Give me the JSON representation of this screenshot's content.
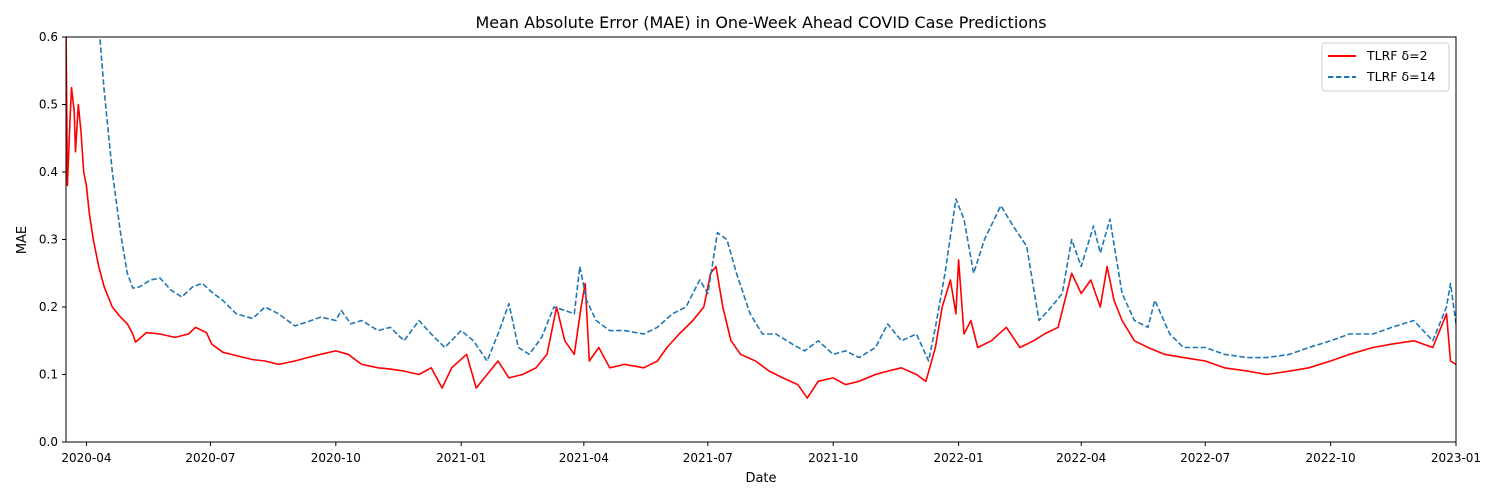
{
  "chart_data": {
    "type": "line",
    "title": "Mean Absolute Error (MAE) in One-Week Ahead COVID Case Predictions",
    "xlabel": "Date",
    "ylabel": "MAE",
    "xlim": [
      "2020-03-17",
      "2023-01-01"
    ],
    "ylim": [
      0,
      0.6
    ],
    "grid": false,
    "legend_position": "top-right",
    "x_ticks": [
      "2020-04",
      "2020-07",
      "2020-10",
      "2021-01",
      "2021-04",
      "2021-07",
      "2021-10",
      "2022-01",
      "2022-04",
      "2022-07",
      "2022-10",
      "2023-01"
    ],
    "y_ticks": [
      "0.0",
      "0.1",
      "0.2",
      "0.3",
      "0.4",
      "0.5",
      "0.6"
    ],
    "series": [
      {
        "name": "TLRF δ=2",
        "color": "#ff0000",
        "dash": "solid",
        "points": [
          [
            "2020-03-17",
            0.62
          ],
          [
            "2020-03-18",
            0.38
          ],
          [
            "2020-03-20",
            0.48
          ],
          [
            "2020-03-21",
            0.525
          ],
          [
            "2020-03-23",
            0.49
          ],
          [
            "2020-03-24",
            0.43
          ],
          [
            "2020-03-26",
            0.5
          ],
          [
            "2020-03-28",
            0.46
          ],
          [
            "2020-03-30",
            0.4
          ],
          [
            "2020-04-01",
            0.38
          ],
          [
            "2020-04-03",
            0.34
          ],
          [
            "2020-04-06",
            0.3
          ],
          [
            "2020-04-10",
            0.26
          ],
          [
            "2020-04-14",
            0.23
          ],
          [
            "2020-04-20",
            0.2
          ],
          [
            "2020-04-26",
            0.185
          ],
          [
            "2020-05-01",
            0.175
          ],
          [
            "2020-05-05",
            0.16
          ],
          [
            "2020-05-07",
            0.148
          ],
          [
            "2020-05-15",
            0.162
          ],
          [
            "2020-05-25",
            0.16
          ],
          [
            "2020-06-05",
            0.155
          ],
          [
            "2020-06-15",
            0.16
          ],
          [
            "2020-06-20",
            0.17
          ],
          [
            "2020-06-28",
            0.162
          ],
          [
            "2020-07-02",
            0.145
          ],
          [
            "2020-07-10",
            0.133
          ],
          [
            "2020-07-20",
            0.128
          ],
          [
            "2020-08-01",
            0.122
          ],
          [
            "2020-08-10",
            0.12
          ],
          [
            "2020-08-20",
            0.115
          ],
          [
            "2020-09-01",
            0.12
          ],
          [
            "2020-09-10",
            0.125
          ],
          [
            "2020-09-20",
            0.13
          ],
          [
            "2020-10-01",
            0.135
          ],
          [
            "2020-10-10",
            0.13
          ],
          [
            "2020-10-20",
            0.115
          ],
          [
            "2020-11-01",
            0.11
          ],
          [
            "2020-11-10",
            0.108
          ],
          [
            "2020-11-20",
            0.105
          ],
          [
            "2020-12-01",
            0.1
          ],
          [
            "2020-12-10",
            0.11
          ],
          [
            "2020-12-18",
            0.08
          ],
          [
            "2020-12-25",
            0.11
          ],
          [
            "2021-01-05",
            0.13
          ],
          [
            "2021-01-12",
            0.08
          ],
          [
            "2021-01-20",
            0.1
          ],
          [
            "2021-01-28",
            0.12
          ],
          [
            "2021-02-05",
            0.095
          ],
          [
            "2021-02-15",
            0.1
          ],
          [
            "2021-02-25",
            0.11
          ],
          [
            "2021-03-05",
            0.13
          ],
          [
            "2021-03-12",
            0.2
          ],
          [
            "2021-03-18",
            0.15
          ],
          [
            "2021-03-25",
            0.13
          ],
          [
            "2021-03-30",
            0.2
          ],
          [
            "2021-04-02",
            0.235
          ],
          [
            "2021-04-05",
            0.12
          ],
          [
            "2021-04-12",
            0.14
          ],
          [
            "2021-04-20",
            0.11
          ],
          [
            "2021-05-01",
            0.115
          ],
          [
            "2021-05-15",
            0.11
          ],
          [
            "2021-05-25",
            0.12
          ],
          [
            "2021-06-01",
            0.14
          ],
          [
            "2021-06-10",
            0.16
          ],
          [
            "2021-06-20",
            0.18
          ],
          [
            "2021-06-28",
            0.2
          ],
          [
            "2021-07-03",
            0.25
          ],
          [
            "2021-07-07",
            0.26
          ],
          [
            "2021-07-12",
            0.2
          ],
          [
            "2021-07-18",
            0.15
          ],
          [
            "2021-07-25",
            0.13
          ],
          [
            "2021-08-05",
            0.12
          ],
          [
            "2021-08-15",
            0.105
          ],
          [
            "2021-08-25",
            0.095
          ],
          [
            "2021-09-05",
            0.085
          ],
          [
            "2021-09-12",
            0.065
          ],
          [
            "2021-09-20",
            0.09
          ],
          [
            "2021-10-01",
            0.095
          ],
          [
            "2021-10-10",
            0.085
          ],
          [
            "2021-10-20",
            0.09
          ],
          [
            "2021-11-01",
            0.1
          ],
          [
            "2021-11-10",
            0.105
          ],
          [
            "2021-11-20",
            0.11
          ],
          [
            "2021-12-01",
            0.1
          ],
          [
            "2021-12-08",
            0.09
          ],
          [
            "2021-12-15",
            0.14
          ],
          [
            "2021-12-20",
            0.2
          ],
          [
            "2021-12-26",
            0.24
          ],
          [
            "2021-12-30",
            0.19
          ],
          [
            "2022-01-01",
            0.27
          ],
          [
            "2022-01-05",
            0.16
          ],
          [
            "2022-01-10",
            0.18
          ],
          [
            "2022-01-15",
            0.14
          ],
          [
            "2022-01-25",
            0.15
          ],
          [
            "2022-02-05",
            0.17
          ],
          [
            "2022-02-15",
            0.14
          ],
          [
            "2022-02-25",
            0.15
          ],
          [
            "2022-03-05",
            0.16
          ],
          [
            "2022-03-15",
            0.17
          ],
          [
            "2022-03-25",
            0.25
          ],
          [
            "2022-04-01",
            0.22
          ],
          [
            "2022-04-08",
            0.24
          ],
          [
            "2022-04-15",
            0.2
          ],
          [
            "2022-04-20",
            0.26
          ],
          [
            "2022-04-25",
            0.21
          ],
          [
            "2022-05-01",
            0.18
          ],
          [
            "2022-05-10",
            0.15
          ],
          [
            "2022-05-20",
            0.14
          ],
          [
            "2022-06-01",
            0.13
          ],
          [
            "2022-06-15",
            0.125
          ],
          [
            "2022-07-01",
            0.12
          ],
          [
            "2022-07-15",
            0.11
          ],
          [
            "2022-08-01",
            0.105
          ],
          [
            "2022-08-15",
            0.1
          ],
          [
            "2022-09-01",
            0.105
          ],
          [
            "2022-09-15",
            0.11
          ],
          [
            "2022-10-01",
            0.12
          ],
          [
            "2022-10-15",
            0.13
          ],
          [
            "2022-11-01",
            0.14
          ],
          [
            "2022-11-15",
            0.145
          ],
          [
            "2022-12-01",
            0.15
          ],
          [
            "2022-12-15",
            0.14
          ],
          [
            "2022-12-25",
            0.19
          ],
          [
            "2022-12-28",
            0.12
          ],
          [
            "2023-01-01",
            0.115
          ]
        ]
      },
      {
        "name": "TLRF δ=14",
        "color": "#1f77b4",
        "dash": "dashed",
        "points": [
          [
            "2020-04-10",
            0.62
          ],
          [
            "2020-04-14",
            0.52
          ],
          [
            "2020-04-20",
            0.4
          ],
          [
            "2020-04-26",
            0.31
          ],
          [
            "2020-05-01",
            0.25
          ],
          [
            "2020-05-05",
            0.228
          ],
          [
            "2020-05-10",
            0.23
          ],
          [
            "2020-05-18",
            0.24
          ],
          [
            "2020-05-25",
            0.243
          ],
          [
            "2020-06-02",
            0.225
          ],
          [
            "2020-06-10",
            0.215
          ],
          [
            "2020-06-18",
            0.23
          ],
          [
            "2020-06-25",
            0.235
          ],
          [
            "2020-07-02",
            0.222
          ],
          [
            "2020-07-10",
            0.21
          ],
          [
            "2020-07-20",
            0.19
          ],
          [
            "2020-08-01",
            0.183
          ],
          [
            "2020-08-10",
            0.2
          ],
          [
            "2020-08-20",
            0.19
          ],
          [
            "2020-09-01",
            0.172
          ],
          [
            "2020-09-10",
            0.178
          ],
          [
            "2020-09-20",
            0.185
          ],
          [
            "2020-10-01",
            0.18
          ],
          [
            "2020-10-05",
            0.195
          ],
          [
            "2020-10-12",
            0.175
          ],
          [
            "2020-10-20",
            0.18
          ],
          [
            "2020-11-01",
            0.165
          ],
          [
            "2020-11-10",
            0.17
          ],
          [
            "2020-11-20",
            0.15
          ],
          [
            "2020-12-01",
            0.18
          ],
          [
            "2020-12-10",
            0.16
          ],
          [
            "2020-12-20",
            0.14
          ],
          [
            "2021-01-01",
            0.165
          ],
          [
            "2021-01-10",
            0.15
          ],
          [
            "2021-01-20",
            0.12
          ],
          [
            "2021-01-28",
            0.16
          ],
          [
            "2021-02-05",
            0.205
          ],
          [
            "2021-02-12",
            0.14
          ],
          [
            "2021-02-20",
            0.13
          ],
          [
            "2021-03-01",
            0.155
          ],
          [
            "2021-03-10",
            0.2
          ],
          [
            "2021-03-18",
            0.195
          ],
          [
            "2021-03-25",
            0.19
          ],
          [
            "2021-03-29",
            0.26
          ],
          [
            "2021-04-03",
            0.21
          ],
          [
            "2021-04-10",
            0.18
          ],
          [
            "2021-04-20",
            0.165
          ],
          [
            "2021-05-01",
            0.165
          ],
          [
            "2021-05-15",
            0.16
          ],
          [
            "2021-05-25",
            0.17
          ],
          [
            "2021-06-05",
            0.19
          ],
          [
            "2021-06-15",
            0.2
          ],
          [
            "2021-06-25",
            0.24
          ],
          [
            "2021-07-01",
            0.22
          ],
          [
            "2021-07-08",
            0.31
          ],
          [
            "2021-07-15",
            0.3
          ],
          [
            "2021-07-22",
            0.25
          ],
          [
            "2021-08-01",
            0.19
          ],
          [
            "2021-08-10",
            0.16
          ],
          [
            "2021-08-20",
            0.16
          ],
          [
            "2021-09-01",
            0.145
          ],
          [
            "2021-09-10",
            0.135
          ],
          [
            "2021-09-20",
            0.15
          ],
          [
            "2021-10-01",
            0.13
          ],
          [
            "2021-10-10",
            0.135
          ],
          [
            "2021-10-20",
            0.125
          ],
          [
            "2021-11-01",
            0.14
          ],
          [
            "2021-11-10",
            0.175
          ],
          [
            "2021-11-20",
            0.15
          ],
          [
            "2021-12-01",
            0.16
          ],
          [
            "2021-12-10",
            0.12
          ],
          [
            "2021-12-15",
            0.17
          ],
          [
            "2021-12-22",
            0.25
          ],
          [
            "2021-12-30",
            0.36
          ],
          [
            "2022-01-05",
            0.33
          ],
          [
            "2022-01-12",
            0.25
          ],
          [
            "2022-01-20",
            0.3
          ],
          [
            "2022-02-01",
            0.35
          ],
          [
            "2022-02-10",
            0.32
          ],
          [
            "2022-02-20",
            0.29
          ],
          [
            "2022-03-01",
            0.18
          ],
          [
            "2022-03-10",
            0.2
          ],
          [
            "2022-03-18",
            0.22
          ],
          [
            "2022-03-25",
            0.3
          ],
          [
            "2022-04-01",
            0.26
          ],
          [
            "2022-04-10",
            0.32
          ],
          [
            "2022-04-15",
            0.28
          ],
          [
            "2022-04-22",
            0.33
          ],
          [
            "2022-05-01",
            0.22
          ],
          [
            "2022-05-10",
            0.18
          ],
          [
            "2022-05-20",
            0.17
          ],
          [
            "2022-05-25",
            0.21
          ],
          [
            "2022-06-05",
            0.16
          ],
          [
            "2022-06-15",
            0.14
          ],
          [
            "2022-07-01",
            0.14
          ],
          [
            "2022-07-15",
            0.13
          ],
          [
            "2022-08-01",
            0.125
          ],
          [
            "2022-08-15",
            0.125
          ],
          [
            "2022-09-01",
            0.13
          ],
          [
            "2022-09-15",
            0.14
          ],
          [
            "2022-10-01",
            0.15
          ],
          [
            "2022-10-15",
            0.16
          ],
          [
            "2022-11-01",
            0.16
          ],
          [
            "2022-11-15",
            0.17
          ],
          [
            "2022-12-01",
            0.18
          ],
          [
            "2022-12-15",
            0.15
          ],
          [
            "2022-12-25",
            0.2
          ],
          [
            "2022-12-28",
            0.235
          ],
          [
            "2023-01-01",
            0.175
          ]
        ]
      }
    ]
  }
}
